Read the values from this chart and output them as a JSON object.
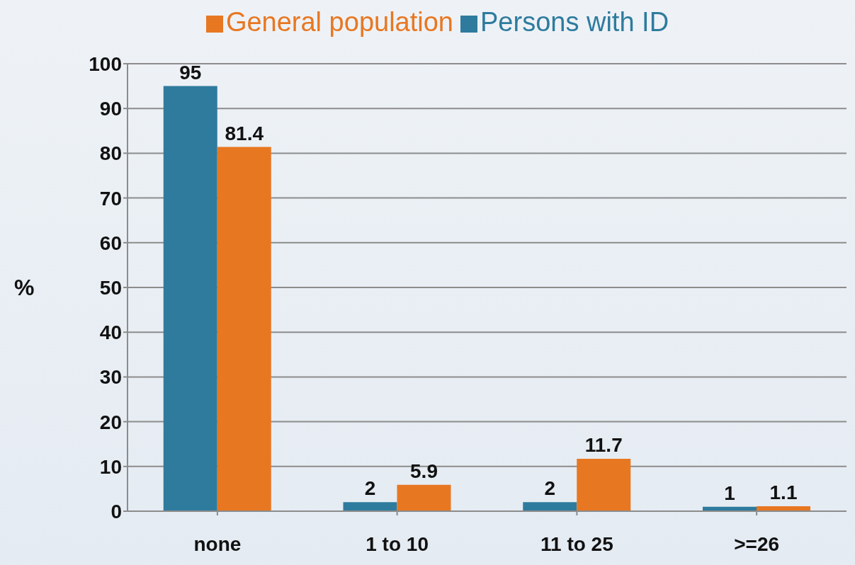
{
  "chart_data": {
    "type": "bar",
    "ylabel": "%",
    "categories": [
      "none",
      "1 to 10",
      "11 to 25",
      ">=26"
    ],
    "series": [
      {
        "name": "Persons with ID",
        "color": "#2e7b9e",
        "values": [
          95,
          2,
          2,
          1
        ]
      },
      {
        "name": "General population",
        "color": "#e87722",
        "values": [
          81.4,
          5.9,
          11.7,
          1.1
        ]
      }
    ],
    "ylim": [
      0,
      100
    ],
    "yticks": [
      0,
      10,
      20,
      30,
      40,
      50,
      60,
      70,
      80,
      90,
      100
    ],
    "grid": "y",
    "legend": "top",
    "data_labels": true
  }
}
